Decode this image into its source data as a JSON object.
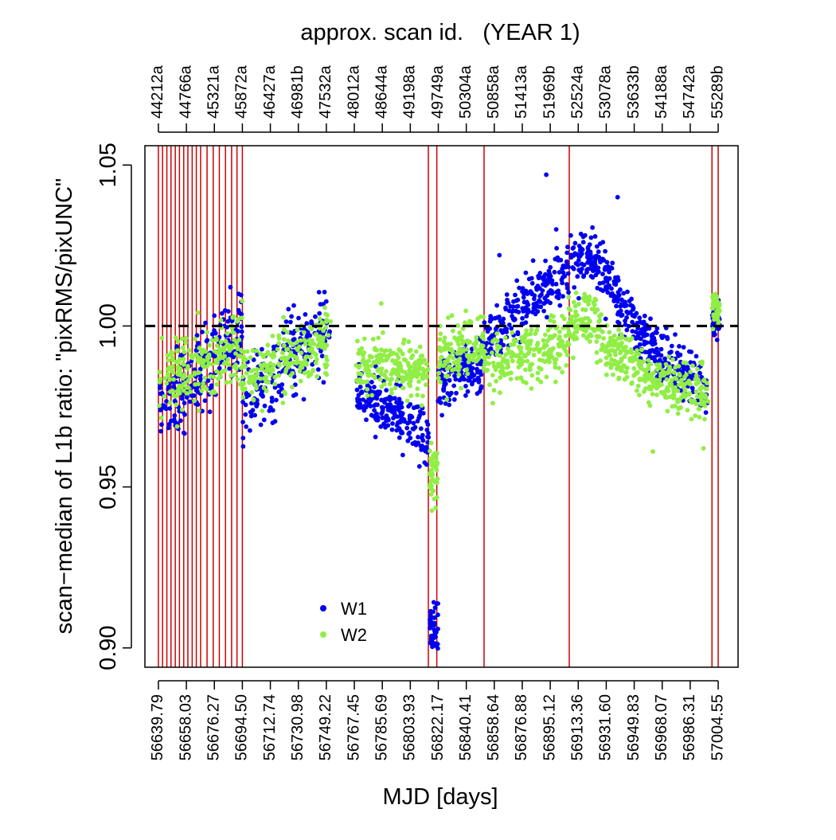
{
  "chart_data": {
    "type": "scatter",
    "title": "approx. scan id.   (YEAR 1)",
    "xlabel": "MJD [days]",
    "ylabel": "scan−median of L1b ratio: \"pixRMS/pixUNC\"",
    "xlim": [
      56631.0,
      57017.5
    ],
    "ylim": [
      0.894,
      1.056
    ],
    "x_ticks": [
      56639.79,
      56658.03,
      56676.27,
      56694.5,
      56712.74,
      56730.98,
      56749.22,
      56767.45,
      56785.69,
      56803.93,
      56822.17,
      56840.41,
      56858.64,
      56876.88,
      56895.12,
      56913.36,
      56931.6,
      56949.83,
      56968.07,
      56986.31,
      57004.55
    ],
    "x_tick_labels": [
      "56639.79",
      "56658.03",
      "56676.27",
      "56694.50",
      "56712.74",
      "56730.98",
      "56749.22",
      "56767.45",
      "56785.69",
      "56803.93",
      "56822.17",
      "56840.41",
      "56858.64",
      "56876.88",
      "56895.12",
      "56913.36",
      "56931.60",
      "56949.83",
      "56968.07",
      "56986.31",
      "57004.55"
    ],
    "top_tick_labels": [
      "44212a",
      "44766a",
      "45321a",
      "45872a",
      "46427a",
      "46981b",
      "47532a",
      "48012a",
      "48644a",
      "49198a",
      "49749a",
      "50304a",
      "50858a",
      "51413a",
      "51969b",
      "52524a",
      "53078a",
      "53633b",
      "54188a",
      "54742a",
      "55289b"
    ],
    "y_ticks": [
      0.9,
      0.95,
      1.0,
      1.05
    ],
    "y_tick_labels": [
      "0.90",
      "0.95",
      "1.00",
      "1.05"
    ],
    "reference_line": 1.0,
    "vertical_lines": [
      56639.79,
      56642.5,
      56645.3,
      56648.0,
      56650.8,
      56653.5,
      56656.3,
      56659.0,
      56661.8,
      56664.5,
      56667.3,
      56671.5,
      56675.5,
      56679.5,
      56683.5,
      56687.5,
      56691.0,
      56694.5,
      56815.7,
      56821.2,
      56852.0,
      56907.5,
      57000.5,
      57004.55
    ],
    "legend": {
      "position": "bottom-center",
      "entries": [
        "W1",
        "W2"
      ]
    },
    "colors": {
      "W1": "#0000ee",
      "W2": "#90ee45",
      "vertical_lines": "#cc0000",
      "reference_line": "#000000"
    },
    "series": [
      {
        "name": "W1",
        "segments": [
          {
            "x": [
              56640.0,
              56694.5
            ],
            "y": [
              0.972,
              1.0
            ],
            "spread": 0.013
          },
          {
            "x": [
              56694.5,
              56752.0
            ],
            "y": [
              0.976,
              1.002
            ],
            "spread": 0.012
          },
          {
            "x": [
              56768.5,
              56816.0
            ],
            "y": [
              0.982,
              0.964
            ],
            "spread": 0.008
          },
          {
            "x": [
              56816.0,
              56822.0
            ],
            "y": [
              0.906,
              0.906
            ],
            "spread": 0.008
          },
          {
            "x": [
              56822.0,
              56852.0
            ],
            "y": [
              0.982,
              0.99
            ],
            "spread": 0.008
          },
          {
            "x": [
              56852.0,
              56907.0
            ],
            "y": [
              0.995,
              1.018
            ],
            "spread": 0.008
          },
          {
            "x": [
              56907.0,
              56925.0
            ],
            "y": [
              1.019,
              1.022
            ],
            "spread": 0.008
          },
          {
            "x": [
              56925.0,
              56950.0
            ],
            "y": [
              1.02,
              1.0
            ],
            "spread": 0.008
          },
          {
            "x": [
              56950.0,
              56998.0
            ],
            "y": [
              0.998,
              0.98
            ],
            "spread": 0.007
          },
          {
            "x": [
              57000.5,
              57005.5
            ],
            "y": [
              1.002,
              1.002
            ],
            "spread": 0.005
          }
        ],
        "outliers": {
          "x": [
            56892.5,
            56939.0,
            56862.0,
            56899.0
          ],
          "y": [
            1.047,
            1.04,
            1.022,
            1.03
          ]
        }
      },
      {
        "name": "W2",
        "segments": [
          {
            "x": [
              56640.0,
              56694.5
            ],
            "y": [
              0.982,
              0.995
            ],
            "spread": 0.011
          },
          {
            "x": [
              56694.5,
              56752.0
            ],
            "y": [
              0.984,
              0.995
            ],
            "spread": 0.009
          },
          {
            "x": [
              56768.5,
              56816.0
            ],
            "y": [
              0.988,
              0.986
            ],
            "spread": 0.007
          },
          {
            "x": [
              56816.0,
              56822.0
            ],
            "y": [
              0.955,
              0.955
            ],
            "spread": 0.008
          },
          {
            "x": [
              56822.0,
              56852.0
            ],
            "y": [
              0.989,
              0.995
            ],
            "spread": 0.008
          },
          {
            "x": [
              56852.0,
              56907.0
            ],
            "y": [
              0.988,
              0.995
            ],
            "spread": 0.008
          },
          {
            "x": [
              56907.0,
              56925.0
            ],
            "y": [
              1.0,
              1.003
            ],
            "spread": 0.007
          },
          {
            "x": [
              56925.0,
              56950.0
            ],
            "y": [
              0.998,
              0.988
            ],
            "spread": 0.007
          },
          {
            "x": [
              56950.0,
              56998.0
            ],
            "y": [
              0.985,
              0.978
            ],
            "spread": 0.007
          },
          {
            "x": [
              57000.5,
              57005.5
            ],
            "y": [
              1.005,
              1.005
            ],
            "spread": 0.005
          }
        ],
        "outliers": {
          "x": [
            56785.0,
            56962.0,
            56995.0
          ],
          "y": [
            1.007,
            0.961,
            0.962
          ]
        }
      }
    ]
  }
}
